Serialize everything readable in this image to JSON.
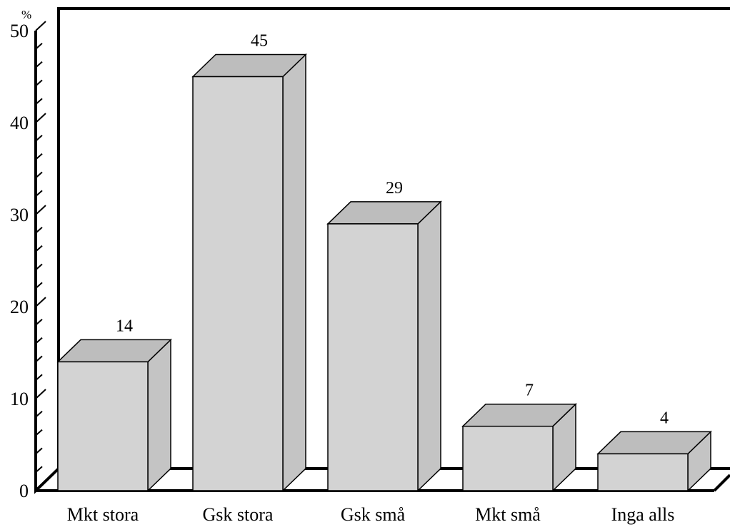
{
  "chart_data": {
    "type": "bar",
    "style": "3d",
    "categories": [
      "Mkt stora",
      "Gsk stora",
      "Gsk små",
      "Mkt små",
      "Inga alls"
    ],
    "values": [
      14,
      45,
      29,
      7,
      4
    ],
    "value_labels": [
      "14",
      "45",
      "29",
      "7",
      "4"
    ],
    "ylim": [
      0,
      50
    ],
    "yticks": [
      0,
      10,
      20,
      30,
      40,
      50
    ],
    "y_unit": "%",
    "title": "",
    "xlabel": "",
    "ylabel": "",
    "grid": false,
    "legend": "none",
    "colors": {
      "bar_front": "#d3d3d3",
      "bar_top": "#bdbdbd",
      "bar_side": "#c4c4c4",
      "outline": "#000000"
    }
  }
}
